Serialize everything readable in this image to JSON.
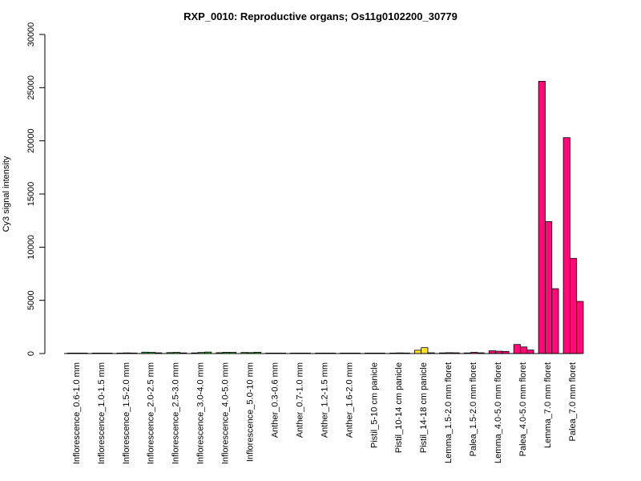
{
  "chart_data": {
    "type": "bar",
    "title": "RXP_0010: Reproductive organs; Os11g0102200_30779",
    "xlabel": "",
    "ylabel": "Cy3 signal intensity",
    "ylim": [
      0,
      30000
    ],
    "yticks": [
      "0",
      "5000",
      "10000",
      "15000",
      "20000",
      "25000",
      "30000"
    ],
    "grid": false,
    "legend": "none",
    "groups": [
      {
        "label": "Inflorescence_0.6-1.0 mm",
        "color": "#228b22",
        "values": [
          15,
          20,
          18
        ]
      },
      {
        "label": "Inflorescence_1.0-1.5 mm",
        "color": "#228b22",
        "values": [
          20,
          25,
          20
        ]
      },
      {
        "label": "Inflorescence_1.5-2.0 mm",
        "color": "#32cd32",
        "values": [
          40,
          60,
          50
        ]
      },
      {
        "label": "Inflorescence_2.0-2.5 mm",
        "color": "#32cd32",
        "values": [
          130,
          110,
          70
        ]
      },
      {
        "label": "Inflorescence_2.5-3.0 mm",
        "color": "#32cd32",
        "values": [
          90,
          110,
          60
        ]
      },
      {
        "label": "Inflorescence_3.0-4.0 mm",
        "color": "#32cd32",
        "values": [
          60,
          100,
          140
        ]
      },
      {
        "label": "Inflorescence_4.0-5.0 mm",
        "color": "#32cd32",
        "values": [
          80,
          120,
          110
        ]
      },
      {
        "label": "Inflorescence_5.0-10 mm",
        "color": "#32cd32",
        "values": [
          100,
          90,
          120
        ]
      },
      {
        "label": "Anther_0.3-0.6 mm",
        "color": "#0000cd",
        "values": [
          30,
          40,
          25
        ]
      },
      {
        "label": "Anther_0.7-1.0 mm",
        "color": "#0000cd",
        "values": [
          10,
          15,
          12
        ]
      },
      {
        "label": "Anther_1.2-1.5 mm",
        "color": "#0000cd",
        "values": [
          10,
          10,
          12
        ]
      },
      {
        "label": "Anther_1.6-2.0 mm",
        "color": "#0000cd",
        "values": [
          15,
          20,
          15
        ]
      },
      {
        "label": "Pistil_5-10 cm panicle",
        "color": "#ffd700",
        "values": [
          20,
          30,
          25
        ]
      },
      {
        "label": "Pistil_10-14 cm panicle",
        "color": "#ffd700",
        "values": [
          40,
          60,
          50
        ]
      },
      {
        "label": "Pistil_14-18 cm panicle",
        "color": "#ffe033",
        "values": [
          310,
          550,
          70
        ]
      },
      {
        "label": "Lemma_1.5-2.0 mm floret",
        "color": "#ff1493",
        "values": [
          60,
          80,
          70
        ]
      },
      {
        "label": "Palea_1.5-2.0 mm floret",
        "color": "#ff1493",
        "values": [
          60,
          110,
          70
        ]
      },
      {
        "label": "Lemma_4.0-5.0 mm floret",
        "color": "#ff0a78",
        "values": [
          260,
          220,
          200
        ]
      },
      {
        "label": "Palea_4.0-5.0 mm floret",
        "color": "#ff0a78",
        "values": [
          850,
          620,
          330
        ]
      },
      {
        "label": "Lemma_7.0 mm floret",
        "color": "#ff0a78",
        "values": [
          25600,
          12400,
          6100
        ]
      },
      {
        "label": "Palea_7.0 mm floret",
        "color": "#ff0a78",
        "values": [
          20300,
          8950,
          4900
        ]
      }
    ]
  }
}
